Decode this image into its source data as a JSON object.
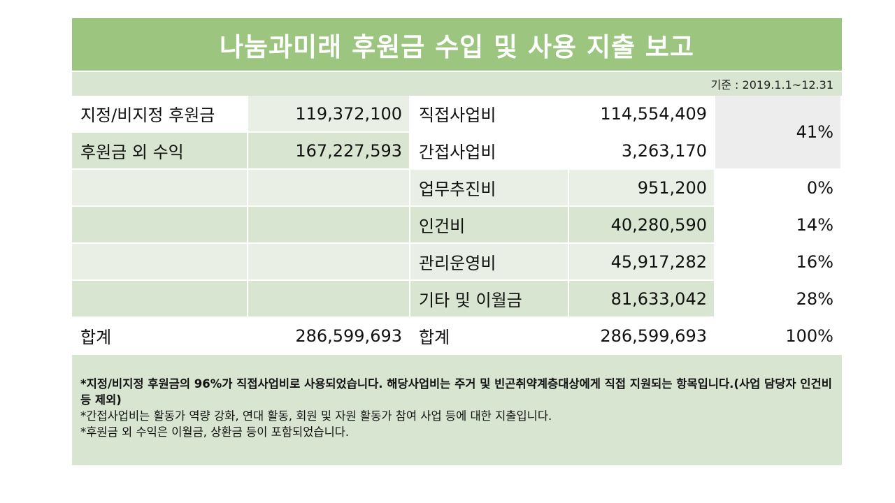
{
  "title": "나눔과미래 후원금 수입 및 사용 지출 보고",
  "basis": "기준 : 2019.1.1~12.31",
  "rows": [
    {
      "income_label": "지정/비지정 후원금",
      "income_amount": "119,372,100",
      "expense_label": "직접사업비",
      "expense_amount": "114,554,409"
    },
    {
      "income_label": "후원금 외 수익",
      "income_amount": "167,227,593",
      "expense_label": "간접사업비",
      "expense_amount": "3,263,170"
    },
    {
      "income_label": "",
      "income_amount": "",
      "expense_label": "업무추진비",
      "expense_amount": "951,200",
      "percent": "0%"
    },
    {
      "income_label": "",
      "income_amount": "",
      "expense_label": "인건비",
      "expense_amount": "40,280,590",
      "percent": "14%"
    },
    {
      "income_label": "",
      "income_amount": "",
      "expense_label": "관리운영비",
      "expense_amount": "45,917,282",
      "percent": "16%"
    },
    {
      "income_label": "",
      "income_amount": "",
      "expense_label": "기타 및 이월금",
      "expense_amount": "81,633,042",
      "percent": "28%"
    }
  ],
  "merged_percent": "41%",
  "total": {
    "income_label": "합계",
    "income_amount": "286,599,693",
    "expense_label": "합계",
    "expense_amount": "286,599,693",
    "percent": "100%"
  },
  "notes": {
    "bold": "*지정/비지정 후원금의 96%가 직접사업비로 사용되었습니다. 해당사업비는 주거 및 빈곤취약계층대상에게 직접 지원되는 항목입니다.(사업 담당자 인건비 등 제외)",
    "line2": "*간접사업비는 활동가 역량 강화, 연대 활동, 회원 및 자원 활동가 참여 사업 등에 대한 지출입니다.",
    "line3": "*후원금 외 수익은 이월금, 상환금 등이 포함되었습니다."
  },
  "colors": {
    "title_bg": "#9cc67f",
    "dark_cell": "#d8e5d0",
    "light_cell": "#e9efe5",
    "gray_cell": "#ededed"
  }
}
